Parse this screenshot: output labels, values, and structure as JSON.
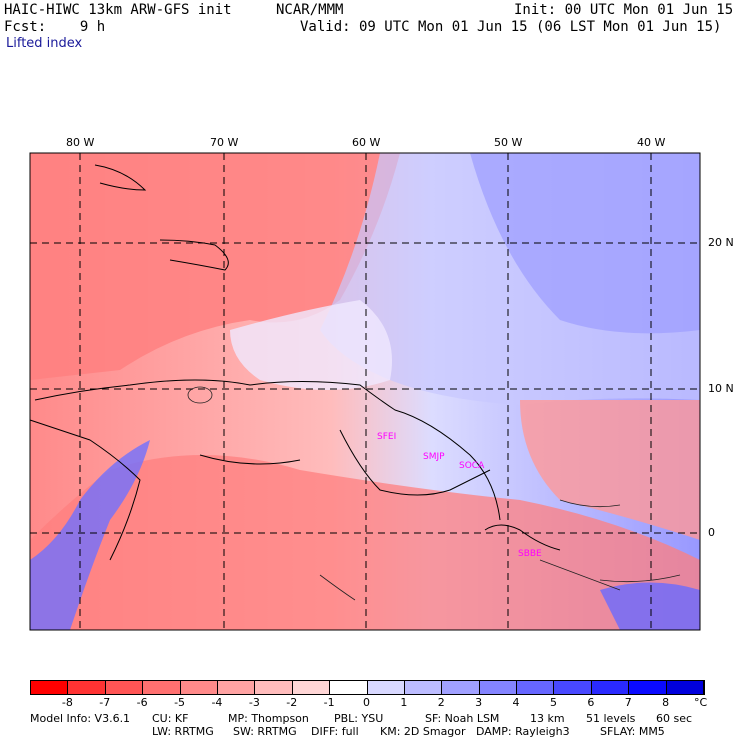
{
  "header": {
    "model": "HAIC-HIWC 13km ARW-GFS init",
    "org": "NCAR/MMM",
    "init": "Init: 00 UTC Mon 01 Jun 15",
    "fcst": "Fcst:    9 h",
    "valid": "Valid: 09 UTC Mon 01 Jun 15 (06 LST Mon 01 Jun 15)",
    "field": "Lifted index"
  },
  "map": {
    "lon_labels": [
      "80 W",
      "70 W",
      "60 W",
      "50 W",
      "40 W"
    ],
    "lat_labels": [
      "20 N",
      "10 N",
      "0"
    ],
    "stations": [
      "SFEI",
      "SMJP",
      "SOCA",
      "SBBE"
    ]
  },
  "colorbar": {
    "unit": "°C",
    "ticks": [
      "-8",
      "-7",
      "-6",
      "-5",
      "-4",
      "-3",
      "-2",
      "-1",
      "0",
      "1",
      "2",
      "3",
      "4",
      "5",
      "6",
      "7",
      "8"
    ],
    "colors": [
      "#ff0000",
      "#ff3333",
      "#ff5555",
      "#ff7070",
      "#ff8a8a",
      "#ffa3a3",
      "#ffbcbc",
      "#ffd6d6",
      "#ffffff",
      "#d8d8ff",
      "#bcbcff",
      "#a0a0ff",
      "#8484ff",
      "#6666ff",
      "#4848ff",
      "#2a2aff",
      "#0a0aff",
      "#0000dd"
    ]
  },
  "footer": {
    "line1": [
      "Model Info: V3.6.1",
      "CU: KF",
      "MP: Thompson",
      "PBL: YSU",
      "SF: Noah LSM",
      "13 km",
      "51 levels",
      "60 sec"
    ],
    "line2": [
      "LW: RRTMG",
      "SW: RRTMG",
      "DIFF: full",
      "KM: 2D Smagor",
      "DAMP: Rayleigh3",
      "SFLAY: MM5"
    ]
  }
}
